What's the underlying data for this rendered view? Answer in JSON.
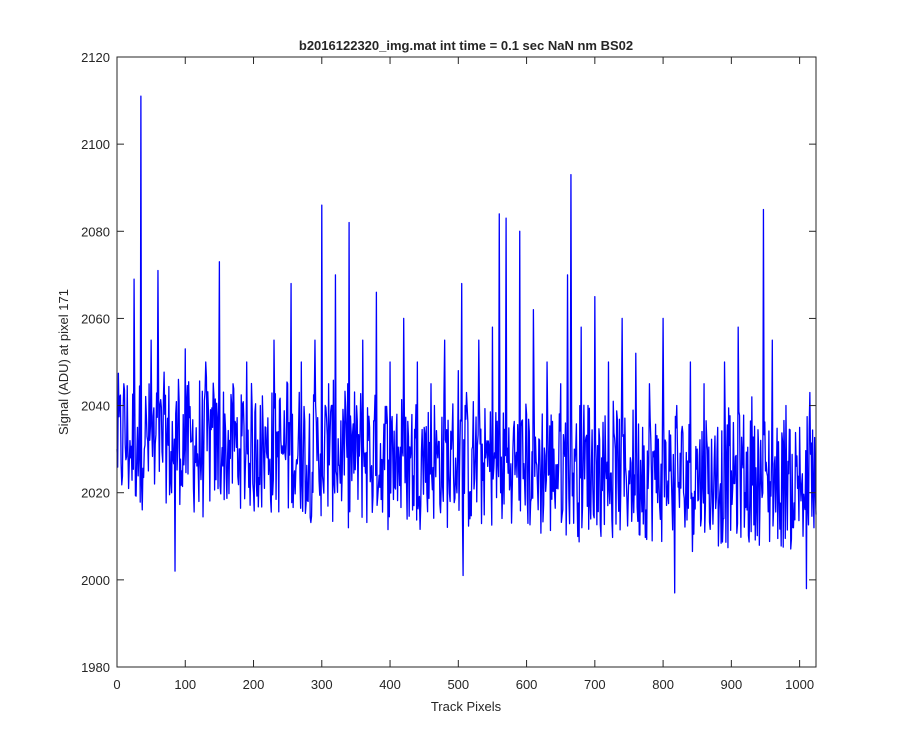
{
  "chart_data": {
    "type": "line",
    "title": "b2016122320_img.mat int time = 0.1 sec  NaN nm BS02",
    "xlabel": "Track Pixels",
    "ylabel": "Signal (ADU) at pixel 171",
    "xlim": [
      0,
      1024
    ],
    "ylim": [
      1980,
      2120
    ],
    "xticks": [
      0,
      100,
      200,
      300,
      400,
      500,
      600,
      700,
      800,
      900,
      1000
    ],
    "yticks": [
      1980,
      2000,
      2020,
      2040,
      2060,
      2080,
      2100,
      2120
    ],
    "grid": false,
    "series": [
      {
        "color": "#0000ff",
        "x": [
          0,
          10,
          20,
          25,
          30,
          35,
          40,
          50,
          55,
          60,
          70,
          80,
          85,
          90,
          95,
          100,
          110,
          120,
          130,
          140,
          150,
          160,
          170,
          180,
          190,
          200,
          210,
          220,
          230,
          240,
          250,
          255,
          260,
          270,
          280,
          290,
          295,
          300,
          302,
          310,
          320,
          330,
          340,
          350,
          360,
          370,
          380,
          390,
          400,
          410,
          420,
          430,
          440,
          450,
          460,
          470,
          480,
          490,
          500,
          505,
          507,
          510,
          520,
          530,
          540,
          550,
          560,
          562,
          570,
          580,
          590,
          600,
          610,
          620,
          630,
          640,
          650,
          660,
          665,
          670,
          680,
          690,
          700,
          710,
          720,
          730,
          740,
          750,
          760,
          770,
          780,
          790,
          800,
          810,
          817,
          820,
          830,
          840,
          850,
          860,
          870,
          880,
          890,
          900,
          910,
          920,
          930,
          940,
          947,
          950,
          960,
          970,
          980,
          990,
          1000,
          1005,
          1010,
          1015,
          1020,
          1024
        ],
        "y": [
          2030,
          2045,
          2028,
          2069,
          2035,
          2111,
          2030,
          2055,
          2022,
          2071,
          2038,
          2020,
          2002,
          2046,
          2025,
          2053,
          2032,
          2018,
          2050,
          2035,
          2073,
          2024,
          2045,
          2030,
          2050,
          2020,
          2040,
          2028,
          2055,
          2032,
          2045,
          2068,
          2025,
          2050,
          2018,
          2055,
          2030,
          2086,
          2022,
          2045,
          2070,
          2025,
          2082,
          2030,
          2055,
          2035,
          2066,
          2028,
          2050,
          2038,
          2060,
          2028,
          2050,
          2035,
          2045,
          2028,
          2055,
          2030,
          2048,
          2068,
          2001,
          2040,
          2030,
          2055,
          2028,
          2058,
          2084,
          2020,
          2083,
          2030,
          2080,
          2038,
          2062,
          2025,
          2050,
          2030,
          2045,
          2070,
          2093,
          2030,
          2058,
          2040,
          2065,
          2028,
          2050,
          2030,
          2060,
          2025,
          2052,
          2035,
          2045,
          2020,
          2060,
          2025,
          1997,
          2040,
          2020,
          2050,
          2030,
          2045,
          2018,
          2035,
          2050,
          2025,
          2058,
          2020,
          2042,
          2030,
          2085,
          2025,
          2055,
          2020,
          2040,
          2012,
          2035,
          2010,
          1998,
          2043,
          2020,
          2015
        ]
      }
    ]
  }
}
